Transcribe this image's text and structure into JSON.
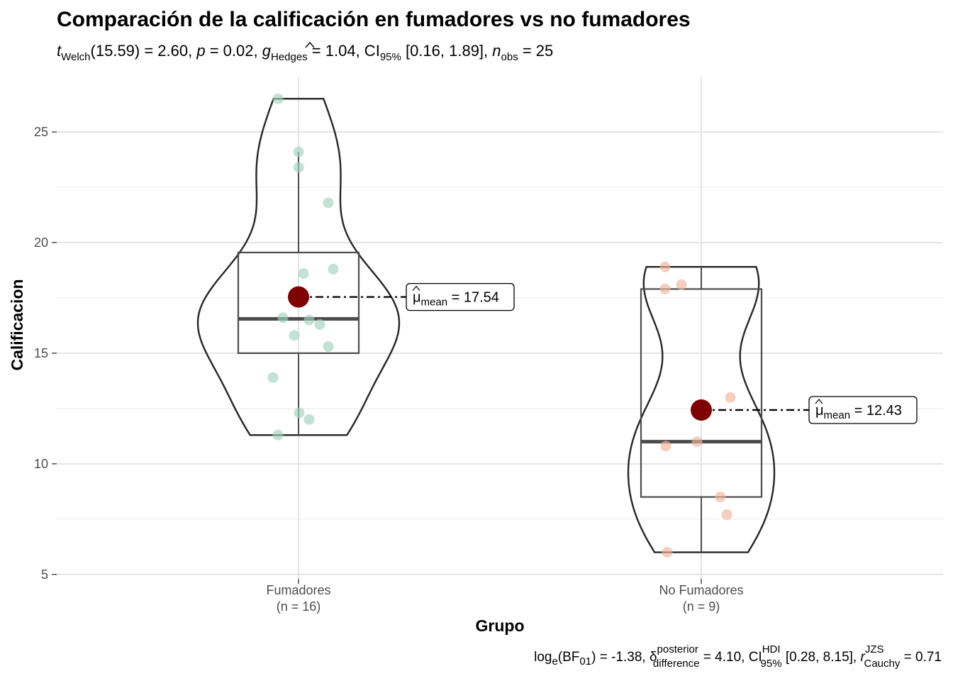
{
  "chart_data": {
    "type": "violin-box",
    "title": "Comparación de la calificación en fumadores vs no fumadores",
    "subtitle": {
      "t_label": "t",
      "t_sub": "Welch",
      "t_value": "(15.59) = 2.60, ",
      "p_label": "p",
      "p_value": " = 0.02, ",
      "g_label": "g",
      "g_sub": "Hedges",
      "g_value": " = 1.04, CI",
      "ci_sub": "95%",
      "ci_value": " [0.16, 1.89], ",
      "n_label": "n",
      "n_sub": "obs",
      "n_value": " = 25"
    },
    "caption": {
      "log_label": "log",
      "log_sub": "e",
      "bf_open": "(BF",
      "bf_sub": "01",
      "bf_value": ") = -1.38, ",
      "delta_label": "δ",
      "delta_sup": "posterior",
      "delta_sub": "difference",
      "delta_value": " = 4.10, CI",
      "ci_sup": "HDI",
      "ci_sub": "95%",
      "ci_value": " [0.28, 8.15], ",
      "r_label": "r",
      "r_sup": "JZS",
      "r_sub": "Cauchy",
      "r_value": " = 0.71"
    },
    "xlabel": "Grupo",
    "ylabel": "Calificacion",
    "ylim": [
      4.8,
      27.5
    ],
    "yticks": [
      5,
      10,
      15,
      20,
      25
    ],
    "grid": true,
    "groups": [
      {
        "name": "Fumadores",
        "n_label": "(n = 16)",
        "color": "#9fd3bf",
        "points": [
          26.5,
          24.1,
          23.4,
          21.8,
          18.8,
          18.6,
          17.4,
          16.6,
          16.5,
          16.3,
          15.8,
          15.3,
          13.9,
          12.3,
          12.0,
          11.3
        ],
        "box": {
          "q1": 15.0,
          "median": 16.55,
          "q3": 19.55,
          "whisker_low": 11.3,
          "whisker_high": 24.1
        },
        "violin": {
          "min": 11.3,
          "max": 26.5
        },
        "mean": 17.54,
        "mean_label_mu": "μ",
        "mean_label_sub": "mean",
        "mean_label_value": " = 17.54"
      },
      {
        "name": "No Fumadores",
        "n_label": "(n = 9)",
        "color": "#f1b49a",
        "points": [
          18.9,
          18.1,
          17.9,
          13.0,
          11.0,
          10.8,
          8.5,
          7.7,
          6.0
        ],
        "box": {
          "q1": 8.5,
          "median": 11.0,
          "q3": 17.9,
          "whisker_low": 6.0,
          "whisker_high": 18.9
        },
        "violin": {
          "min": 6.0,
          "max": 18.9
        },
        "mean": 12.43,
        "mean_label_mu": "μ",
        "mean_label_sub": "mean",
        "mean_label_value": " = 12.43"
      }
    ],
    "mean_color": "#7f0000"
  }
}
